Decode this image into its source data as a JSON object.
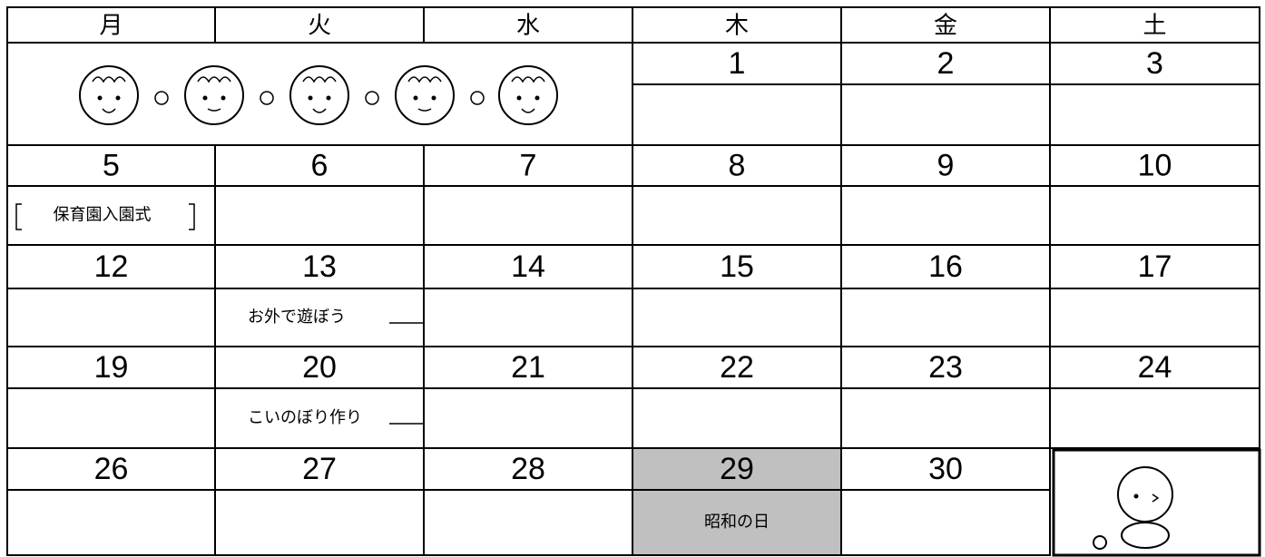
{
  "calendar": {
    "header": [
      "月",
      "火",
      "水",
      "木",
      "金",
      "土"
    ],
    "weeks": [
      [
        {
          "date": 1
        },
        {
          "date": 2
        },
        {
          "date": 3
        }
      ],
      [
        {
          "date": 5,
          "event": "保育園入園式"
        },
        {
          "date": 6
        },
        {
          "date": 7
        },
        {
          "date": 8
        },
        {
          "date": 9
        },
        {
          "date": 10
        }
      ],
      [
        {
          "date": 12
        },
        {
          "date": 13,
          "event": "お外で遊ぼう"
        },
        {
          "date": 14
        },
        {
          "date": 15
        },
        {
          "date": 16
        },
        {
          "date": 17
        }
      ],
      [
        {
          "date": 19
        },
        {
          "date": 20,
          "event": "こいのぼり作り"
        },
        {
          "date": 21
        },
        {
          "date": 22
        },
        {
          "date": 23
        },
        {
          "date": 24
        }
      ],
      [
        {
          "date": 26
        },
        {
          "date": 27
        },
        {
          "date": 28
        },
        {
          "date": 29,
          "event": "昭和の日",
          "holiday": true
        },
        {
          "date": 30
        }
      ]
    ]
  }
}
